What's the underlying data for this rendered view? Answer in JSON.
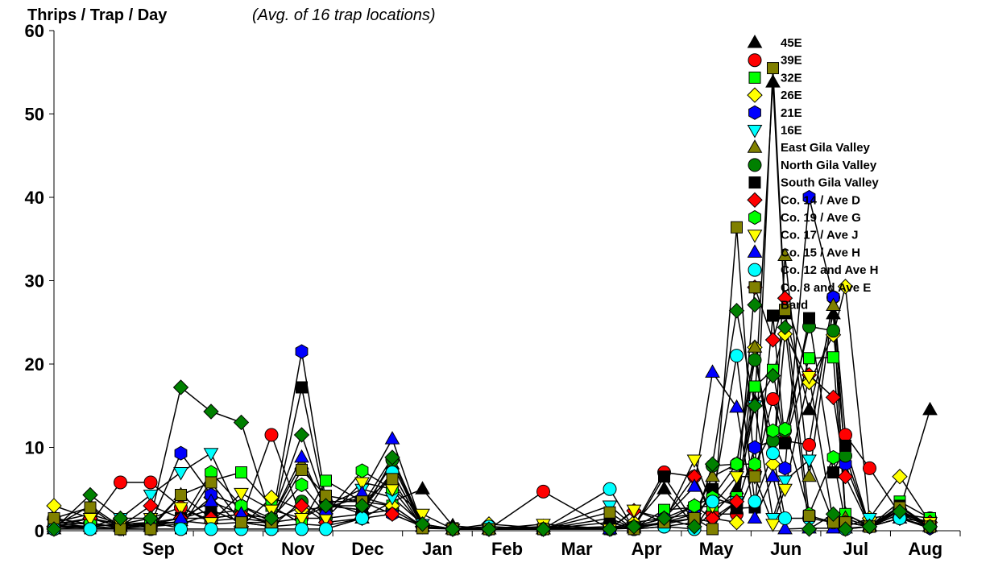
{
  "chart_data": {
    "type": "line",
    "title": "Thrips / Trap / Day",
    "subtitle": "(Avg. of 16 trap locations)",
    "xlabel": "",
    "ylabel": "",
    "ylim": [
      0,
      60
    ],
    "yticks": [
      0,
      10,
      20,
      30,
      40,
      50,
      60
    ],
    "xlim": [
      0,
      15
    ],
    "month_labels": [
      "Sep",
      "Oct",
      "Nov",
      "Dec",
      "Jan",
      "Feb",
      "Mar",
      "Apr",
      "May",
      "Jun",
      "Jul",
      "Aug"
    ],
    "grid": false,
    "legend_position": "top-right",
    "x": [
      0,
      0.6,
      1.1,
      1.6,
      2.1,
      2.6,
      3.1,
      3.6,
      4.1,
      4.5,
      5.1,
      5.6,
      6.1,
      6.6,
      7.2,
      8.1,
      9.2,
      9.6,
      10.1,
      10.6,
      10.9,
      11.3,
      11.6,
      11.9,
      12.1,
      12.5,
      12.9,
      13.1,
      13.5,
      14.0,
      14.5
    ],
    "series": [
      {
        "name": "45E",
        "marker": "triangle-up",
        "fill": "#000000",
        "values": [
          0.2,
          0.5,
          0.8,
          0.5,
          1.2,
          0.8,
          1.0,
          0.5,
          0.8,
          0.6,
          1.5,
          3.5,
          5.0,
          0.6,
          0.2,
          0.5,
          0.2,
          0.8,
          5.0,
          0.6,
          2.0,
          5.0,
          15.5,
          53.8,
          26.0,
          14.5,
          26.0,
          2.0,
          0.6,
          2.5,
          14.5
        ]
      },
      {
        "name": "39E",
        "marker": "circle",
        "fill": "#ff0000",
        "values": [
          1.5,
          0.8,
          5.8,
          5.8,
          2.8,
          1.2,
          1.5,
          11.5,
          1.5,
          3.5,
          2.0,
          2.5,
          0.5,
          0.2,
          0.2,
          4.7,
          0.2,
          0.5,
          7.0,
          6.5,
          2.0,
          2.0,
          7.0,
          15.8,
          10.8,
          10.3,
          28.0,
          11.5,
          7.5,
          2.0,
          1.5
        ]
      },
      {
        "name": "32E",
        "marker": "square",
        "fill": "#00ff00",
        "values": [
          0.5,
          0.5,
          0.8,
          1.0,
          0.3,
          6.0,
          7.0,
          3.0,
          0.8,
          6.0,
          3.5,
          3.0,
          0.5,
          0.3,
          0.2,
          0.2,
          0.2,
          0.3,
          2.5,
          2.8,
          3.0,
          4.0,
          17.3,
          19.3,
          10.5,
          20.7,
          20.8,
          2.0,
          0.5,
          3.5,
          1.5
        ]
      },
      {
        "name": "26E",
        "marker": "diamond",
        "fill": "#ffff00",
        "values": [
          3.0,
          1.5,
          0.5,
          0.8,
          1.0,
          4.0,
          0.5,
          4.0,
          2.5,
          2.8,
          4.0,
          3.0,
          0.5,
          0.2,
          0.8,
          0.3,
          0.3,
          1.0,
          1.5,
          3.0,
          1.5,
          1.0,
          22.0,
          8.0,
          23.6,
          17.8,
          23.5,
          29.3,
          1.5,
          6.5,
          1.0
        ]
      },
      {
        "name": "21E",
        "marker": "hexagon",
        "fill": "#0000ff",
        "values": [
          0.5,
          1.0,
          0.3,
          0.8,
          9.3,
          4.3,
          3.0,
          1.0,
          21.5,
          3.5,
          3.5,
          2.0,
          0.5,
          0.2,
          0.2,
          0.2,
          0.2,
          0.5,
          1.5,
          2.0,
          4.0,
          3.0,
          10.0,
          10.8,
          7.5,
          40.0,
          28.0,
          8.0,
          0.5,
          1.5,
          0.3
        ]
      },
      {
        "name": "16E",
        "marker": "triangle-down",
        "fill": "#00ffff",
        "values": [
          0.8,
          0.5,
          1.5,
          4.3,
          7.0,
          9.3,
          1.5,
          1.0,
          1.5,
          3.0,
          5.0,
          4.0,
          0.8,
          0.2,
          0.2,
          0.2,
          3.0,
          0.5,
          0.8,
          1.5,
          1.0,
          3.5,
          15.0,
          1.5,
          6.0,
          8.5,
          1.0,
          0.5,
          1.5,
          2.0,
          1.0
        ]
      },
      {
        "name": "East Gila Valley",
        "marker": "triangle-up",
        "fill": "#808000",
        "values": [
          1.0,
          2.0,
          0.8,
          0.5,
          4.3,
          1.5,
          2.0,
          1.5,
          8.0,
          3.0,
          2.5,
          8.0,
          0.5,
          0.2,
          0.2,
          0.2,
          1.5,
          0.3,
          1.0,
          2.0,
          6.5,
          8.0,
          22.0,
          6.5,
          33.0,
          6.5,
          27.0,
          1.5,
          0.5,
          2.0,
          0.5
        ]
      },
      {
        "name": "North Gila Valley",
        "marker": "circle",
        "fill": "#008000",
        "values": [
          0.5,
          0.5,
          0.3,
          0.5,
          0.8,
          2.0,
          2.5,
          0.5,
          3.5,
          1.5,
          2.0,
          8.5,
          0.5,
          0.2,
          0.2,
          0.2,
          0.5,
          0.2,
          0.5,
          1.0,
          7.8,
          8.0,
          20.5,
          10.8,
          12.0,
          24.5,
          24.0,
          9.0,
          0.5,
          2.5,
          0.5
        ]
      },
      {
        "name": "South Gila Valley",
        "marker": "square",
        "fill": "#000000",
        "values": [
          0.5,
          0.3,
          0.2,
          0.8,
          1.5,
          2.5,
          1.0,
          0.5,
          17.2,
          3.0,
          2.5,
          7.0,
          0.5,
          0.2,
          0.2,
          0.2,
          1.0,
          0.3,
          6.5,
          1.0,
          5.0,
          2.7,
          2.8,
          25.8,
          10.5,
          25.5,
          7.0,
          10.2,
          0.5,
          3.0,
          0.5
        ]
      },
      {
        "name": "Co. 14 / Ave D",
        "marker": "diamond",
        "fill": "#ff0000",
        "values": [
          0.5,
          1.5,
          0.5,
          3.0,
          1.5,
          1.5,
          2.0,
          1.0,
          3.0,
          1.0,
          1.5,
          2.0,
          0.5,
          0.2,
          0.2,
          0.2,
          0.2,
          2.4,
          1.5,
          6.5,
          1.5,
          3.5,
          29.2,
          22.9,
          27.9,
          18.7,
          16.0,
          6.5,
          0.5,
          1.5,
          1.0
        ]
      },
      {
        "name": "Co. 19 / Ave G",
        "marker": "hexagon",
        "fill": "#00ff00",
        "values": [
          1.0,
          0.8,
          0.5,
          1.0,
          1.0,
          7.0,
          3.0,
          1.5,
          5.5,
          2.0,
          7.2,
          5.0,
          0.5,
          0.2,
          0.2,
          0.2,
          0.2,
          0.5,
          1.0,
          3.0,
          4.0,
          8.0,
          8.0,
          12.0,
          12.2,
          2.0,
          8.8,
          1.0,
          0.5,
          2.5,
          0.5
        ]
      },
      {
        "name": "Co. 17 / Ave J",
        "marker": "triangle-down",
        "fill": "#ffff00",
        "values": [
          0.8,
          1.5,
          0.8,
          1.5,
          2.8,
          1.0,
          4.5,
          2.5,
          1.5,
          1.5,
          5.8,
          5.0,
          2.0,
          0.2,
          0.2,
          0.8,
          0.2,
          2.5,
          1.0,
          8.5,
          3.0,
          6.5,
          6.5,
          0.8,
          5.0,
          18.5,
          1.0,
          1.0,
          0.5,
          2.0,
          1.0
        ]
      },
      {
        "name": "Co. 15 / Ave H",
        "marker": "triangle-up",
        "fill": "#0000ff",
        "values": [
          0.5,
          3.0,
          0.5,
          1.0,
          1.5,
          3.5,
          2.0,
          1.5,
          8.8,
          2.5,
          4.5,
          11.0,
          0.5,
          0.2,
          0.2,
          0.2,
          0.2,
          0.5,
          1.5,
          5.3,
          19.0,
          14.8,
          1.5,
          6.5,
          0.2,
          0.3,
          0.3,
          0.3,
          0.5,
          1.5,
          0.5
        ]
      },
      {
        "name": "Co. 12 and Ave H",
        "marker": "circle",
        "fill": "#00ffff",
        "values": [
          0.2,
          0.2,
          0.2,
          0.2,
          0.2,
          0.2,
          0.2,
          0.2,
          0.2,
          0.2,
          1.5,
          7.0,
          0.5,
          0.2,
          0.5,
          0.2,
          5.0,
          0.2,
          0.5,
          0.2,
          3.5,
          21.0,
          3.5,
          9.3,
          1.5,
          1.5,
          1.0,
          0.2,
          0.5,
          1.5,
          0.5
        ]
      },
      {
        "name": "Co. 8 and Ave E",
        "marker": "square",
        "fill": "#808000",
        "values": [
          1.5,
          2.8,
          0.2,
          0.2,
          4.3,
          5.8,
          1.0,
          1.0,
          7.3,
          4.2,
          3.5,
          6.2,
          0.3,
          0.2,
          0.2,
          0.2,
          2.2,
          0.2,
          1.0,
          1.5,
          0.2,
          36.4,
          6.5,
          55.5,
          26.5,
          1.8,
          1.0,
          1.0,
          0.5,
          2.8,
          0.5
        ]
      },
      {
        "name": "Bard",
        "marker": "diamond",
        "fill": "#008000",
        "values": [
          0.2,
          4.3,
          1.5,
          1.5,
          17.2,
          14.3,
          13.0,
          1.5,
          11.5,
          3.0,
          3.0,
          8.8,
          0.8,
          0.2,
          0.2,
          0.2,
          0.2,
          0.5,
          1.5,
          0.5,
          8.0,
          26.4,
          15.0,
          18.6,
          24.4,
          0.2,
          2.0,
          0.2,
          0.5,
          2.3,
          0.5
        ]
      }
    ]
  }
}
